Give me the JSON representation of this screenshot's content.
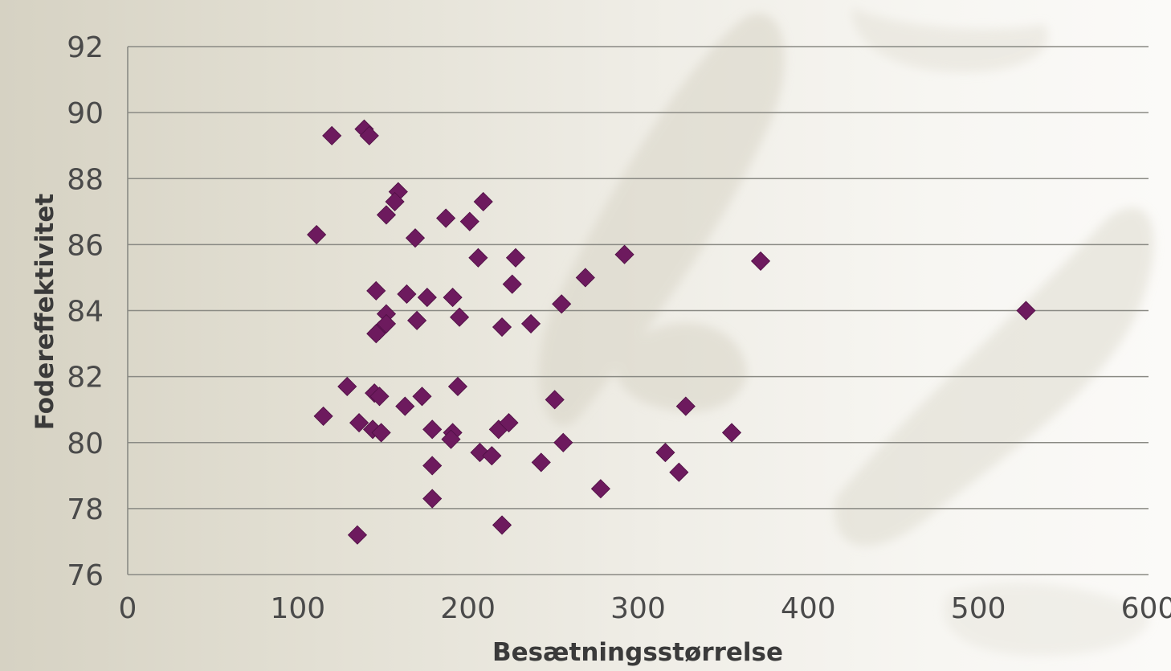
{
  "chart_data": {
    "type": "scatter",
    "title": "",
    "xlabel": "Besætningsstørrelse",
    "ylabel": "Fodereffektivitet",
    "xlim": [
      0,
      600
    ],
    "ylim": [
      76,
      92
    ],
    "xticks": [
      "0",
      "100",
      "200",
      "300",
      "400",
      "500",
      "600"
    ],
    "yticks": [
      "76",
      "78",
      "80",
      "82",
      "84",
      "86",
      "88",
      "90",
      "92"
    ],
    "grid": "horizontal",
    "legend": "none",
    "marker": "diamond",
    "point_color": "#6d1a5e",
    "points": [
      [
        120,
        89.3
      ],
      [
        139,
        89.5
      ],
      [
        142,
        89.3
      ],
      [
        159,
        87.6
      ],
      [
        157,
        87.3
      ],
      [
        152,
        86.9
      ],
      [
        209,
        87.3
      ],
      [
        111,
        86.3
      ],
      [
        169,
        86.2
      ],
      [
        187,
        86.8
      ],
      [
        201,
        86.7
      ],
      [
        206,
        85.6
      ],
      [
        228,
        85.6
      ],
      [
        292,
        85.7
      ],
      [
        372,
        85.5
      ],
      [
        226,
        84.8
      ],
      [
        269,
        85.0
      ],
      [
        146,
        84.6
      ],
      [
        164,
        84.5
      ],
      [
        176,
        84.4
      ],
      [
        191,
        84.4
      ],
      [
        255,
        84.2
      ],
      [
        152,
        83.9
      ],
      [
        170,
        83.7
      ],
      [
        195,
        83.8
      ],
      [
        220,
        83.5
      ],
      [
        237,
        83.6
      ],
      [
        528,
        84.0
      ],
      [
        148,
        83.4
      ],
      [
        152,
        83.6
      ],
      [
        146,
        83.3
      ],
      [
        129,
        81.7
      ],
      [
        194,
        81.7
      ],
      [
        145,
        81.5
      ],
      [
        148,
        81.4
      ],
      [
        173,
        81.4
      ],
      [
        251,
        81.3
      ],
      [
        115,
        80.8
      ],
      [
        163,
        81.1
      ],
      [
        328,
        81.1
      ],
      [
        136,
        80.6
      ],
      [
        144,
        80.4
      ],
      [
        149,
        80.3
      ],
      [
        179,
        80.4
      ],
      [
        191,
        80.3
      ],
      [
        190,
        80.1
      ],
      [
        218,
        80.4
      ],
      [
        224,
        80.6
      ],
      [
        256,
        80.0
      ],
      [
        355,
        80.3
      ],
      [
        207,
        79.7
      ],
      [
        214,
        79.6
      ],
      [
        316,
        79.7
      ],
      [
        243,
        79.4
      ],
      [
        179,
        79.3
      ],
      [
        324,
        79.1
      ],
      [
        278,
        78.6
      ],
      [
        179,
        78.3
      ],
      [
        220,
        77.5
      ],
      [
        135,
        77.2
      ]
    ]
  }
}
